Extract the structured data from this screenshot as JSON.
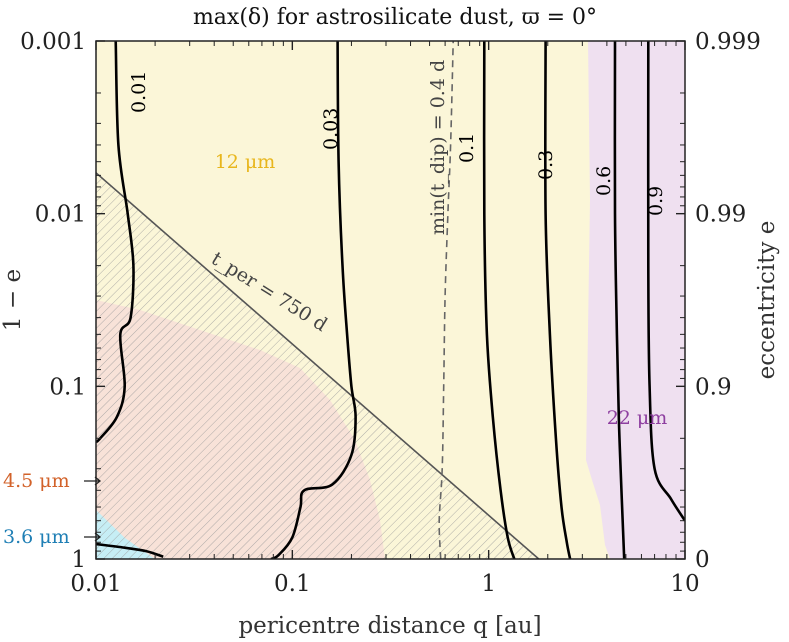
{
  "chart_data": {
    "type": "contour",
    "title": "max(δ) for astrosilicate dust, ϖ = 0°",
    "xlabel": "pericentre distance q [au]",
    "ylabel_left": "1 − e",
    "ylabel_right": "eccentricity e",
    "x_scale": "log",
    "xlim": [
      0.01,
      10
    ],
    "x_ticks": [
      "0.01",
      "0.1",
      "1",
      "10"
    ],
    "y_scale": "log",
    "ylim_one_minus_e": [
      1,
      0.001
    ],
    "y_ticks_left": [
      "0.001",
      "0.01",
      "0.1",
      "1"
    ],
    "y_ticks_right": [
      "0.999",
      "0.99",
      "0.9",
      "0"
    ],
    "regions": [
      {
        "label": "12 μm",
        "color": "#fbf6d8"
      },
      {
        "label": "22 μm",
        "color": "#efe0f0",
        "x_min": 3.2
      },
      {
        "label": "4.5 μm",
        "color": "#f8e2d8"
      },
      {
        "label": "3.6 μm",
        "color": "#c6eef5"
      }
    ],
    "region_arrow_labels": [
      "4.5 μm",
      "3.6 μm"
    ],
    "contours": [
      {
        "label": "0.01",
        "points": [
          [
            0.0126,
            0.001
          ],
          [
            0.013,
            0.004
          ],
          [
            0.0145,
            0.01
          ],
          [
            0.0155,
            0.02
          ],
          [
            0.015,
            0.04
          ],
          [
            0.0133,
            0.05
          ],
          [
            0.014,
            0.1
          ],
          [
            0.0128,
            0.15
          ],
          [
            0.0105,
            0.2
          ],
          [
            0.01,
            0.21
          ]
        ]
      },
      {
        "label": "0.01",
        "points": [
          [
            0.01,
            0.82
          ],
          [
            0.014,
            0.86
          ],
          [
            0.018,
            0.9
          ],
          [
            0.022,
            0.97
          ]
        ]
      },
      {
        "label": "0.03",
        "points": [
          [
            0.17,
            0.001
          ],
          [
            0.172,
            0.005
          ],
          [
            0.18,
            0.02
          ],
          [
            0.19,
            0.05
          ],
          [
            0.2,
            0.1
          ],
          [
            0.21,
            0.15
          ],
          [
            0.2,
            0.25
          ],
          [
            0.16,
            0.37
          ],
          [
            0.115,
            0.4
          ],
          [
            0.11,
            0.5
          ],
          [
            0.1,
            0.75
          ],
          [
            0.085,
            0.95
          ],
          [
            0.078,
            1.0
          ]
        ]
      },
      {
        "label": "0.1",
        "points": [
          [
            0.95,
            0.001
          ],
          [
            0.95,
            0.01
          ],
          [
            0.98,
            0.05
          ],
          [
            1.05,
            0.15
          ],
          [
            1.15,
            0.4
          ],
          [
            1.25,
            0.75
          ],
          [
            1.35,
            1.0
          ]
        ]
      },
      {
        "label": "0.3",
        "points": [
          [
            1.95,
            0.001
          ],
          [
            1.95,
            0.01
          ],
          [
            2.05,
            0.05
          ],
          [
            2.2,
            0.2
          ],
          [
            2.35,
            0.5
          ],
          [
            2.5,
            0.8
          ],
          [
            2.6,
            1.0
          ]
        ]
      },
      {
        "label": "0.6",
        "points": [
          [
            4.4,
            0.001
          ],
          [
            4.4,
            0.01
          ],
          [
            4.5,
            0.05
          ],
          [
            4.6,
            0.15
          ],
          [
            4.7,
            0.3
          ],
          [
            4.8,
            0.55
          ],
          [
            4.9,
            1.0
          ]
        ]
      },
      {
        "label": "0.9",
        "points": [
          [
            6.5,
            0.001
          ],
          [
            6.5,
            0.02
          ],
          [
            6.6,
            0.1
          ],
          [
            7.0,
            0.3
          ],
          [
            8.5,
            0.45
          ],
          [
            10,
            0.6
          ]
        ]
      }
    ],
    "dashed_curve": {
      "label": "min(t_dip) = 0.4 d",
      "points": [
        [
          0.57,
          1.0
        ],
        [
          0.56,
          0.6
        ],
        [
          0.58,
          0.3
        ],
        [
          0.59,
          0.1
        ],
        [
          0.6,
          0.03
        ],
        [
          0.62,
          0.01
        ],
        [
          0.64,
          0.004
        ],
        [
          0.66,
          0.001
        ]
      ]
    },
    "line": {
      "label": "t_per = 750 d",
      "points": [
        [
          0.01,
          0.0058
        ],
        [
          1.8,
          1.0
        ]
      ]
    }
  }
}
